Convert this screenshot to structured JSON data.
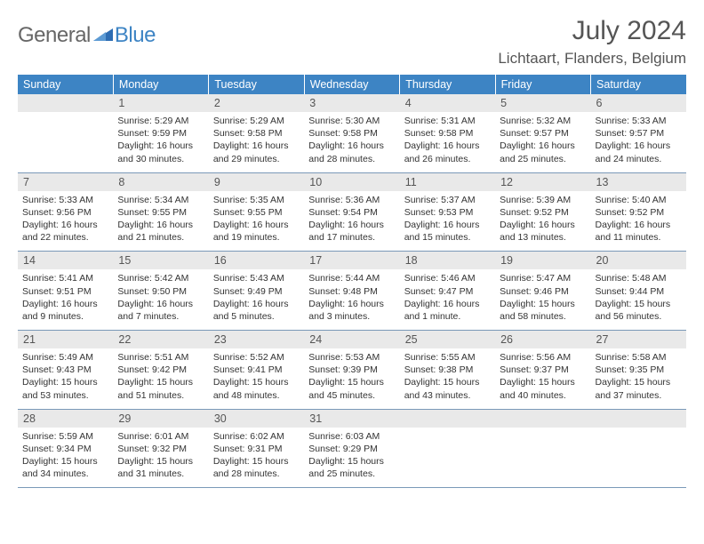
{
  "logo": {
    "text1": "General",
    "text2": "Blue"
  },
  "title": "July 2024",
  "location": "Lichtaart, Flanders, Belgium",
  "colors": {
    "header_bg": "#3d84c4",
    "header_text": "#ffffff",
    "daynum_bg": "#e9e9e9",
    "daynum_text": "#555555",
    "body_text": "#333333",
    "rule": "#7a99b8",
    "logo_gray": "#676767",
    "logo_blue": "#3d84c4"
  },
  "typography": {
    "title_fontsize": 30,
    "location_fontsize": 17,
    "header_fontsize": 12.5,
    "daynum_fontsize": 12.5,
    "cell_fontsize": 10.5
  },
  "weekdays": [
    "Sunday",
    "Monday",
    "Tuesday",
    "Wednesday",
    "Thursday",
    "Friday",
    "Saturday"
  ],
  "weeks": [
    [
      {
        "n": "",
        "sr": "",
        "ss": "",
        "dl": ""
      },
      {
        "n": "1",
        "sr": "Sunrise: 5:29 AM",
        "ss": "Sunset: 9:59 PM",
        "dl": "Daylight: 16 hours and 30 minutes."
      },
      {
        "n": "2",
        "sr": "Sunrise: 5:29 AM",
        "ss": "Sunset: 9:58 PM",
        "dl": "Daylight: 16 hours and 29 minutes."
      },
      {
        "n": "3",
        "sr": "Sunrise: 5:30 AM",
        "ss": "Sunset: 9:58 PM",
        "dl": "Daylight: 16 hours and 28 minutes."
      },
      {
        "n": "4",
        "sr": "Sunrise: 5:31 AM",
        "ss": "Sunset: 9:58 PM",
        "dl": "Daylight: 16 hours and 26 minutes."
      },
      {
        "n": "5",
        "sr": "Sunrise: 5:32 AM",
        "ss": "Sunset: 9:57 PM",
        "dl": "Daylight: 16 hours and 25 minutes."
      },
      {
        "n": "6",
        "sr": "Sunrise: 5:33 AM",
        "ss": "Sunset: 9:57 PM",
        "dl": "Daylight: 16 hours and 24 minutes."
      }
    ],
    [
      {
        "n": "7",
        "sr": "Sunrise: 5:33 AM",
        "ss": "Sunset: 9:56 PM",
        "dl": "Daylight: 16 hours and 22 minutes."
      },
      {
        "n": "8",
        "sr": "Sunrise: 5:34 AM",
        "ss": "Sunset: 9:55 PM",
        "dl": "Daylight: 16 hours and 21 minutes."
      },
      {
        "n": "9",
        "sr": "Sunrise: 5:35 AM",
        "ss": "Sunset: 9:55 PM",
        "dl": "Daylight: 16 hours and 19 minutes."
      },
      {
        "n": "10",
        "sr": "Sunrise: 5:36 AM",
        "ss": "Sunset: 9:54 PM",
        "dl": "Daylight: 16 hours and 17 minutes."
      },
      {
        "n": "11",
        "sr": "Sunrise: 5:37 AM",
        "ss": "Sunset: 9:53 PM",
        "dl": "Daylight: 16 hours and 15 minutes."
      },
      {
        "n": "12",
        "sr": "Sunrise: 5:39 AM",
        "ss": "Sunset: 9:52 PM",
        "dl": "Daylight: 16 hours and 13 minutes."
      },
      {
        "n": "13",
        "sr": "Sunrise: 5:40 AM",
        "ss": "Sunset: 9:52 PM",
        "dl": "Daylight: 16 hours and 11 minutes."
      }
    ],
    [
      {
        "n": "14",
        "sr": "Sunrise: 5:41 AM",
        "ss": "Sunset: 9:51 PM",
        "dl": "Daylight: 16 hours and 9 minutes."
      },
      {
        "n": "15",
        "sr": "Sunrise: 5:42 AM",
        "ss": "Sunset: 9:50 PM",
        "dl": "Daylight: 16 hours and 7 minutes."
      },
      {
        "n": "16",
        "sr": "Sunrise: 5:43 AM",
        "ss": "Sunset: 9:49 PM",
        "dl": "Daylight: 16 hours and 5 minutes."
      },
      {
        "n": "17",
        "sr": "Sunrise: 5:44 AM",
        "ss": "Sunset: 9:48 PM",
        "dl": "Daylight: 16 hours and 3 minutes."
      },
      {
        "n": "18",
        "sr": "Sunrise: 5:46 AM",
        "ss": "Sunset: 9:47 PM",
        "dl": "Daylight: 16 hours and 1 minute."
      },
      {
        "n": "19",
        "sr": "Sunrise: 5:47 AM",
        "ss": "Sunset: 9:46 PM",
        "dl": "Daylight: 15 hours and 58 minutes."
      },
      {
        "n": "20",
        "sr": "Sunrise: 5:48 AM",
        "ss": "Sunset: 9:44 PM",
        "dl": "Daylight: 15 hours and 56 minutes."
      }
    ],
    [
      {
        "n": "21",
        "sr": "Sunrise: 5:49 AM",
        "ss": "Sunset: 9:43 PM",
        "dl": "Daylight: 15 hours and 53 minutes."
      },
      {
        "n": "22",
        "sr": "Sunrise: 5:51 AM",
        "ss": "Sunset: 9:42 PM",
        "dl": "Daylight: 15 hours and 51 minutes."
      },
      {
        "n": "23",
        "sr": "Sunrise: 5:52 AM",
        "ss": "Sunset: 9:41 PM",
        "dl": "Daylight: 15 hours and 48 minutes."
      },
      {
        "n": "24",
        "sr": "Sunrise: 5:53 AM",
        "ss": "Sunset: 9:39 PM",
        "dl": "Daylight: 15 hours and 45 minutes."
      },
      {
        "n": "25",
        "sr": "Sunrise: 5:55 AM",
        "ss": "Sunset: 9:38 PM",
        "dl": "Daylight: 15 hours and 43 minutes."
      },
      {
        "n": "26",
        "sr": "Sunrise: 5:56 AM",
        "ss": "Sunset: 9:37 PM",
        "dl": "Daylight: 15 hours and 40 minutes."
      },
      {
        "n": "27",
        "sr": "Sunrise: 5:58 AM",
        "ss": "Sunset: 9:35 PM",
        "dl": "Daylight: 15 hours and 37 minutes."
      }
    ],
    [
      {
        "n": "28",
        "sr": "Sunrise: 5:59 AM",
        "ss": "Sunset: 9:34 PM",
        "dl": "Daylight: 15 hours and 34 minutes."
      },
      {
        "n": "29",
        "sr": "Sunrise: 6:01 AM",
        "ss": "Sunset: 9:32 PM",
        "dl": "Daylight: 15 hours and 31 minutes."
      },
      {
        "n": "30",
        "sr": "Sunrise: 6:02 AM",
        "ss": "Sunset: 9:31 PM",
        "dl": "Daylight: 15 hours and 28 minutes."
      },
      {
        "n": "31",
        "sr": "Sunrise: 6:03 AM",
        "ss": "Sunset: 9:29 PM",
        "dl": "Daylight: 15 hours and 25 minutes."
      },
      {
        "n": "",
        "sr": "",
        "ss": "",
        "dl": ""
      },
      {
        "n": "",
        "sr": "",
        "ss": "",
        "dl": ""
      },
      {
        "n": "",
        "sr": "",
        "ss": "",
        "dl": ""
      }
    ]
  ]
}
